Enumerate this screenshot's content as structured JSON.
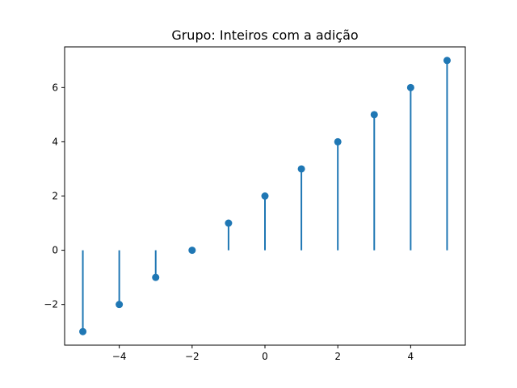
{
  "chart_data": {
    "type": "stem",
    "title": "Grupo: Inteiros com a adição",
    "xlabel": "",
    "ylabel": "",
    "x": [
      -5,
      -4,
      -3,
      -2,
      -1,
      0,
      1,
      2,
      3,
      4,
      5
    ],
    "y": [
      -3,
      -2,
      -1,
      0,
      1,
      2,
      3,
      4,
      5,
      6,
      7
    ],
    "baseline": 0,
    "xlim": [
      -5.5,
      5.5
    ],
    "ylim": [
      -3.5,
      7.5
    ],
    "xticks": [
      -4,
      -2,
      0,
      2,
      4
    ],
    "yticks": [
      -2,
      0,
      2,
      4,
      6
    ],
    "grid": false,
    "color": "#1f77b4"
  }
}
